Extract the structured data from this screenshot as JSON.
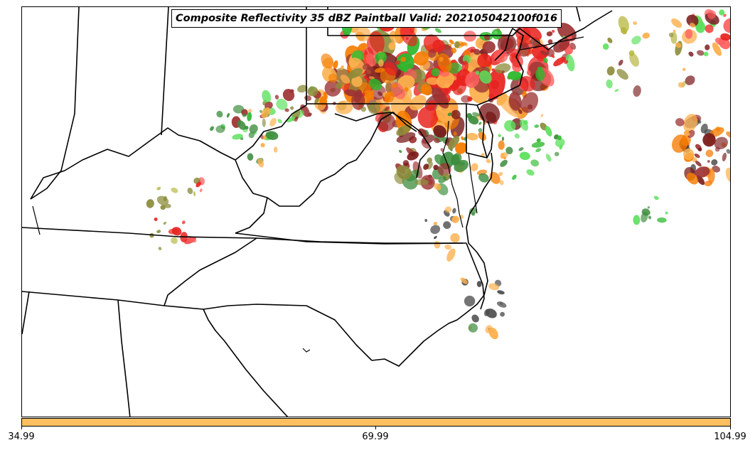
{
  "title": "Composite Reflectivity 35 dBZ Paintball Valid: 202105042100f016",
  "colorbar": {
    "color": "#fdbf5f",
    "ticks": [
      "34.99",
      "69.99",
      "104.99"
    ]
  },
  "palette": {
    "red": "#e8231f",
    "light_red": "#ff6060",
    "dark_red": "#9c3232",
    "maroon": "#7a1c1c",
    "orange": "#f57c00",
    "light_orange": "#fdb04d",
    "olive": "#8c8c3c",
    "yellow_olive": "#b5b540",
    "green": "#2db92d",
    "light_green": "#5ce05c",
    "dark_green": "#3c8c3c",
    "dark_gray": "#4a4a4a"
  }
}
